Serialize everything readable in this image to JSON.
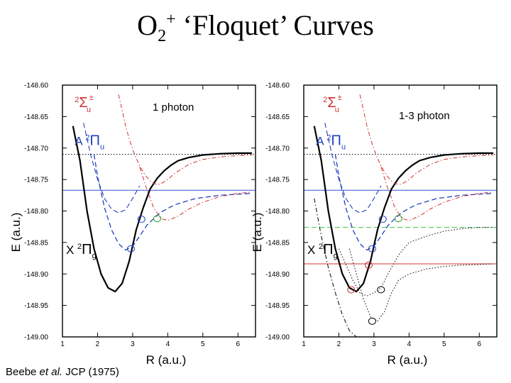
{
  "title": {
    "main": "O",
    "sub": "2",
    "sup": "+",
    "rest": " ‘Floquet’ Curves"
  },
  "citation": {
    "prefix": "Beebe ",
    "etal": "et al.",
    "suffix": " JCP (1975)"
  },
  "chart_data": [
    {
      "type": "line",
      "annotation": "1 photon",
      "xlabel": "R (a.u.)",
      "ylabel": "E (a.u.)",
      "xlim": [
        1,
        6.5
      ],
      "ylim": [
        -149.0,
        -148.6
      ],
      "xticks": [
        1,
        2,
        3,
        4,
        5,
        6
      ],
      "yticks": [
        -148.6,
        -148.65,
        -148.7,
        -148.75,
        -148.8,
        -148.85,
        -148.9,
        -148.95,
        -149.0
      ],
      "state_labels": [
        {
          "letter": "",
          "mult": "2",
          "sym": "Σ",
          "sub": "u",
          "sup": "±",
          "color": "#d03030",
          "at": [
            1.35,
            -148.635
          ]
        },
        {
          "letter": "A",
          "mult": "2",
          "sym": "Π",
          "sub": "u",
          "sup": "",
          "color": "#2040c0",
          "at": [
            1.35,
            -148.695
          ]
        },
        {
          "letter": "X",
          "mult": "2",
          "sym": "Π",
          "sub": "g",
          "sup": "",
          "color": "#000000",
          "at": [
            1.1,
            -148.868
          ]
        }
      ],
      "hlines": [
        {
          "y": -148.71,
          "color": "#000000",
          "style": "dotted"
        },
        {
          "y": -148.767,
          "color": "#3050d0",
          "style": "solid"
        }
      ],
      "series": [
        {
          "color": "#000000",
          "style": "solid",
          "width": 2.2,
          "x": [
            1.3,
            1.5,
            1.7,
            1.9,
            2.1,
            2.3,
            2.5,
            2.7,
            2.9,
            3.1,
            3.3,
            3.5,
            3.7,
            3.9,
            4.1,
            4.3,
            4.6,
            5.0,
            5.5,
            6.0,
            6.4
          ],
          "y": [
            -148.665,
            -148.72,
            -148.8,
            -148.86,
            -148.9,
            -148.922,
            -148.928,
            -148.915,
            -148.88,
            -148.83,
            -148.795,
            -148.765,
            -148.748,
            -148.736,
            -148.727,
            -148.72,
            -148.715,
            -148.711,
            -148.709,
            -148.708,
            -148.708
          ]
        },
        {
          "color": "#2040c0",
          "style": "dashed",
          "width": 1.3,
          "x": [
            1.9,
            2.0,
            2.2,
            2.4,
            2.6,
            2.8,
            3.0,
            3.2,
            3.4,
            3.6,
            3.8,
            4.2,
            4.8,
            5.5,
            6.4
          ],
          "y": [
            -148.71,
            -148.745,
            -148.795,
            -148.83,
            -148.852,
            -148.862,
            -148.856,
            -148.84,
            -148.823,
            -148.812,
            -148.802,
            -148.79,
            -148.78,
            -148.775,
            -148.772
          ]
        },
        {
          "color": "#2040c0",
          "style": "dashed",
          "width": 1.1,
          "x": [
            1.6,
            1.8,
            2.0,
            2.2,
            2.4,
            2.6,
            2.8,
            3.0,
            3.2
          ],
          "y": [
            -148.66,
            -148.71,
            -148.75,
            -148.78,
            -148.797,
            -148.803,
            -148.798,
            -148.78,
            -148.76
          ]
        },
        {
          "color": "#d03030",
          "style": "dashdot",
          "width": 1.0,
          "x": [
            2.6,
            2.7,
            2.8,
            2.9,
            3.0,
            3.1,
            3.2,
            3.3,
            3.4,
            3.5,
            3.6,
            3.7,
            3.8,
            4.0,
            4.2,
            4.6,
            5.0,
            5.5,
            6.0,
            6.4
          ],
          "y": [
            -148.615,
            -148.64,
            -148.665,
            -148.685,
            -148.702,
            -148.716,
            -148.728,
            -148.738,
            -148.746,
            -148.752,
            -148.756,
            -148.758,
            -148.757,
            -148.75,
            -148.74,
            -148.726,
            -148.718,
            -148.714,
            -148.712,
            -148.711
          ]
        },
        {
          "color": "#d03030",
          "style": "dashdot",
          "width": 1.0,
          "x": [
            3.2,
            3.4,
            3.6,
            3.8,
            4.0,
            4.3,
            4.6,
            5.0,
            5.5,
            6.0,
            6.4
          ],
          "y": [
            -148.73,
            -148.765,
            -148.795,
            -148.812,
            -148.815,
            -148.808,
            -148.797,
            -148.786,
            -148.777,
            -148.772,
            -148.77
          ]
        }
      ],
      "crossings": [
        {
          "x": 3.25,
          "y": -148.813,
          "color": "#2040c0"
        },
        {
          "x": 2.95,
          "y": -148.86,
          "color": "#2040c0"
        },
        {
          "x": 3.7,
          "y": -148.812,
          "color": "#30a030"
        }
      ]
    },
    {
      "type": "line",
      "annotation": "1-3 photon",
      "xlabel": "R (a.u.)",
      "ylabel": "E (a.u.)",
      "xlim": [
        1,
        6.5
      ],
      "ylim": [
        -149.0,
        -148.6
      ],
      "xticks": [
        1,
        2,
        3,
        4,
        5,
        6
      ],
      "yticks": [
        -148.6,
        -148.65,
        -148.7,
        -148.75,
        -148.8,
        -148.85,
        -148.9,
        -148.95,
        -149.0
      ],
      "state_labels": [
        {
          "letter": "",
          "mult": "2",
          "sym": "Σ",
          "sub": "u",
          "sup": "±",
          "color": "#d03030",
          "at": [
            1.55,
            -148.635
          ]
        },
        {
          "letter": "A",
          "mult": "2",
          "sym": "Π",
          "sub": "u",
          "sup": "",
          "color": "#2040c0",
          "at": [
            1.35,
            -148.695
          ]
        },
        {
          "letter": "X",
          "mult": "2",
          "sym": "Π",
          "sub": "g",
          "sup": "",
          "color": "#000000",
          "at": [
            1.1,
            -148.868
          ]
        }
      ],
      "hlines": [
        {
          "y": -148.71,
          "color": "#000000",
          "style": "dotted"
        },
        {
          "y": -148.767,
          "color": "#3050d0",
          "style": "solid"
        },
        {
          "y": -148.826,
          "color": "#40c040",
          "style": "dashed"
        },
        {
          "y": -148.884,
          "color": "#d03030",
          "style": "solid"
        }
      ],
      "series": [
        {
          "color": "#000000",
          "style": "solid",
          "width": 2.2,
          "x": [
            1.3,
            1.5,
            1.7,
            1.9,
            2.1,
            2.3,
            2.5,
            2.7,
            2.9,
            3.1,
            3.3,
            3.5,
            3.7,
            3.9,
            4.1,
            4.3,
            4.6,
            5.0,
            5.5,
            6.0,
            6.4
          ],
          "y": [
            -148.665,
            -148.72,
            -148.8,
            -148.86,
            -148.9,
            -148.922,
            -148.928,
            -148.915,
            -148.88,
            -148.83,
            -148.795,
            -148.765,
            -148.748,
            -148.736,
            -148.727,
            -148.72,
            -148.715,
            -148.711,
            -148.709,
            -148.708,
            -148.708
          ]
        },
        {
          "color": "#2040c0",
          "style": "dashed",
          "width": 1.3,
          "x": [
            1.9,
            2.0,
            2.2,
            2.4,
            2.6,
            2.8,
            3.0,
            3.2,
            3.4,
            3.6,
            3.8,
            4.2,
            4.8,
            5.5,
            6.4
          ],
          "y": [
            -148.71,
            -148.745,
            -148.795,
            -148.83,
            -148.852,
            -148.862,
            -148.856,
            -148.84,
            -148.823,
            -148.812,
            -148.802,
            -148.79,
            -148.78,
            -148.775,
            -148.772
          ]
        },
        {
          "color": "#2040c0",
          "style": "dashed",
          "width": 1.1,
          "x": [
            1.6,
            1.8,
            2.0,
            2.2,
            2.4,
            2.6,
            2.8,
            3.0,
            3.2
          ],
          "y": [
            -148.66,
            -148.71,
            -148.75,
            -148.78,
            -148.797,
            -148.803,
            -148.798,
            -148.78,
            -148.76
          ]
        },
        {
          "color": "#d03030",
          "style": "dashdot",
          "width": 1.0,
          "x": [
            2.6,
            2.7,
            2.8,
            2.9,
            3.0,
            3.1,
            3.2,
            3.3,
            3.4,
            3.5,
            3.6,
            3.7,
            3.8,
            4.0,
            4.2,
            4.6,
            5.0,
            5.5,
            6.0,
            6.4
          ],
          "y": [
            -148.615,
            -148.64,
            -148.665,
            -148.685,
            -148.702,
            -148.716,
            -148.728,
            -148.738,
            -148.746,
            -148.752,
            -148.756,
            -148.758,
            -148.757,
            -148.75,
            -148.74,
            -148.726,
            -148.718,
            -148.714,
            -148.712,
            -148.711
          ]
        },
        {
          "color": "#d03030",
          "style": "dashdot",
          "width": 1.0,
          "x": [
            3.2,
            3.4,
            3.6,
            3.8,
            4.0,
            4.3,
            4.6,
            5.0,
            5.5,
            6.0,
            6.4
          ],
          "y": [
            -148.73,
            -148.765,
            -148.795,
            -148.812,
            -148.815,
            -148.808,
            -148.797,
            -148.786,
            -148.777,
            -148.772,
            -148.77
          ]
        },
        {
          "color": "#000000",
          "style": "dashdot",
          "width": 1.0,
          "x": [
            1.3,
            1.5,
            1.7,
            1.9,
            2.1,
            2.3,
            2.5,
            2.7,
            2.9
          ],
          "y": [
            -148.78,
            -148.84,
            -148.89,
            -148.93,
            -148.965,
            -148.99,
            -149.0,
            -149.01,
            -149.02
          ]
        },
        {
          "color": "#000000",
          "style": "dotted",
          "width": 1.0,
          "x": [
            2.0,
            2.2,
            2.4,
            2.6,
            2.8,
            3.0,
            3.2,
            3.4,
            3.7,
            4.0,
            4.5,
            5.0,
            5.5,
            6.0,
            6.4
          ],
          "y": [
            -148.86,
            -148.885,
            -148.91,
            -148.93,
            -148.935,
            -148.93,
            -148.922,
            -148.9,
            -148.87,
            -148.85,
            -148.84,
            -148.832,
            -148.828,
            -148.826,
            -148.826
          ]
        },
        {
          "color": "#000000",
          "style": "dotted",
          "width": 1.0,
          "x": [
            2.3,
            2.5,
            2.7,
            2.9,
            3.1,
            3.3,
            3.5,
            3.7,
            4.0,
            4.5,
            5.0,
            5.5,
            6.0,
            6.4
          ],
          "y": [
            -148.86,
            -148.9,
            -148.94,
            -148.968,
            -148.975,
            -148.96,
            -148.93,
            -148.91,
            -148.9,
            -148.892,
            -148.888,
            -148.886,
            -148.885,
            -148.884
          ]
        }
      ],
      "crossings": [
        {
          "x": 3.25,
          "y": -148.813,
          "color": "#2040c0"
        },
        {
          "x": 2.95,
          "y": -148.86,
          "color": "#2040c0"
        },
        {
          "x": 3.7,
          "y": -148.812,
          "color": "#30a030"
        },
        {
          "x": 2.85,
          "y": -148.886,
          "color": "#d03030"
        },
        {
          "x": 2.35,
          "y": -148.925,
          "color": "#d03030"
        },
        {
          "x": 3.2,
          "y": -148.925,
          "color": "#000000"
        },
        {
          "x": 2.95,
          "y": -148.975,
          "color": "#000000"
        }
      ]
    }
  ]
}
